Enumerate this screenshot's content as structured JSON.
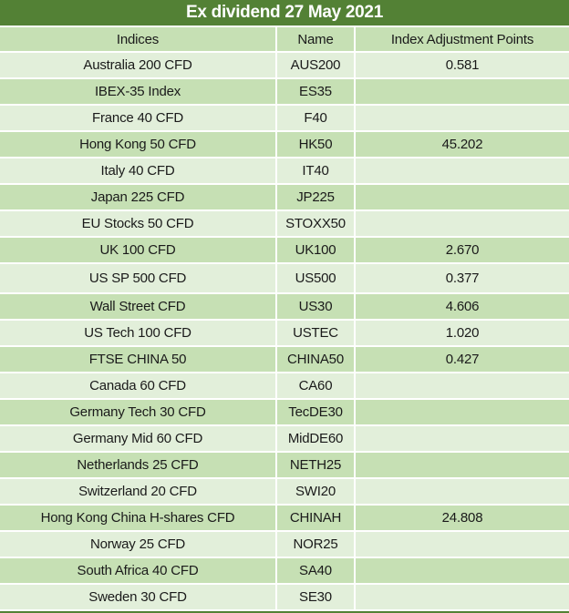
{
  "title": "Ex dividend 27 May 2021",
  "colors": {
    "title_bg": "#538135",
    "title_text": "#ffffff",
    "header_bg": "#c6e0b4",
    "row_even_bg": "#e2efda",
    "row_odd_bg": "#c6e0b4",
    "text": "#1a1a1a",
    "separator": "#ffffff"
  },
  "chart_data": {
    "type": "table",
    "title": "Ex dividend 27 May 2021",
    "columns": [
      "Indices",
      "Name",
      "Index Adjustment Points"
    ],
    "rows": [
      {
        "indices": "Australia 200 CFD",
        "name": "AUS200",
        "adjustment": "0.581"
      },
      {
        "indices": "IBEX-35 Index",
        "name": "ES35",
        "adjustment": ""
      },
      {
        "indices": "France 40 CFD",
        "name": "F40",
        "adjustment": ""
      },
      {
        "indices": "Hong Kong 50 CFD",
        "name": "HK50",
        "adjustment": "45.202"
      },
      {
        "indices": "Italy 40 CFD",
        "name": "IT40",
        "adjustment": ""
      },
      {
        "indices": "Japan 225 CFD",
        "name": "JP225",
        "adjustment": ""
      },
      {
        "indices": "EU Stocks 50 CFD",
        "name": "STOXX50",
        "adjustment": ""
      },
      {
        "indices": "UK 100 CFD",
        "name": "UK100",
        "adjustment": "2.670"
      },
      {
        "indices": "US SP 500 CFD",
        "name": "US500",
        "adjustment": "0.377"
      },
      {
        "indices": "Wall Street CFD",
        "name": "US30",
        "adjustment": "4.606"
      },
      {
        "indices": "US Tech 100 CFD",
        "name": "USTEC",
        "adjustment": "1.020"
      },
      {
        "indices": "FTSE CHINA 50",
        "name": "CHINA50",
        "adjustment": "0.427"
      },
      {
        "indices": "Canada 60 CFD",
        "name": "CA60",
        "adjustment": ""
      },
      {
        "indices": "Germany Tech 30 CFD",
        "name": "TecDE30",
        "adjustment": ""
      },
      {
        "indices": "Germany Mid 60 CFD",
        "name": "MidDE60",
        "adjustment": ""
      },
      {
        "indices": "Netherlands 25 CFD",
        "name": "NETH25",
        "adjustment": ""
      },
      {
        "indices": "Switzerland 20 CFD",
        "name": "SWI20",
        "adjustment": ""
      },
      {
        "indices": "Hong Kong China H-shares CFD",
        "name": "CHINAH",
        "adjustment": "24.808"
      },
      {
        "indices": "Norway 25 CFD",
        "name": "NOR25",
        "adjustment": ""
      },
      {
        "indices": "South Africa 40 CFD",
        "name": "SA40",
        "adjustment": ""
      },
      {
        "indices": "Sweden 30 CFD",
        "name": "SE30",
        "adjustment": ""
      }
    ],
    "layout": {
      "tall_row_index": 8,
      "alternating_shading": "even rows light green, odd rows medium green"
    }
  }
}
